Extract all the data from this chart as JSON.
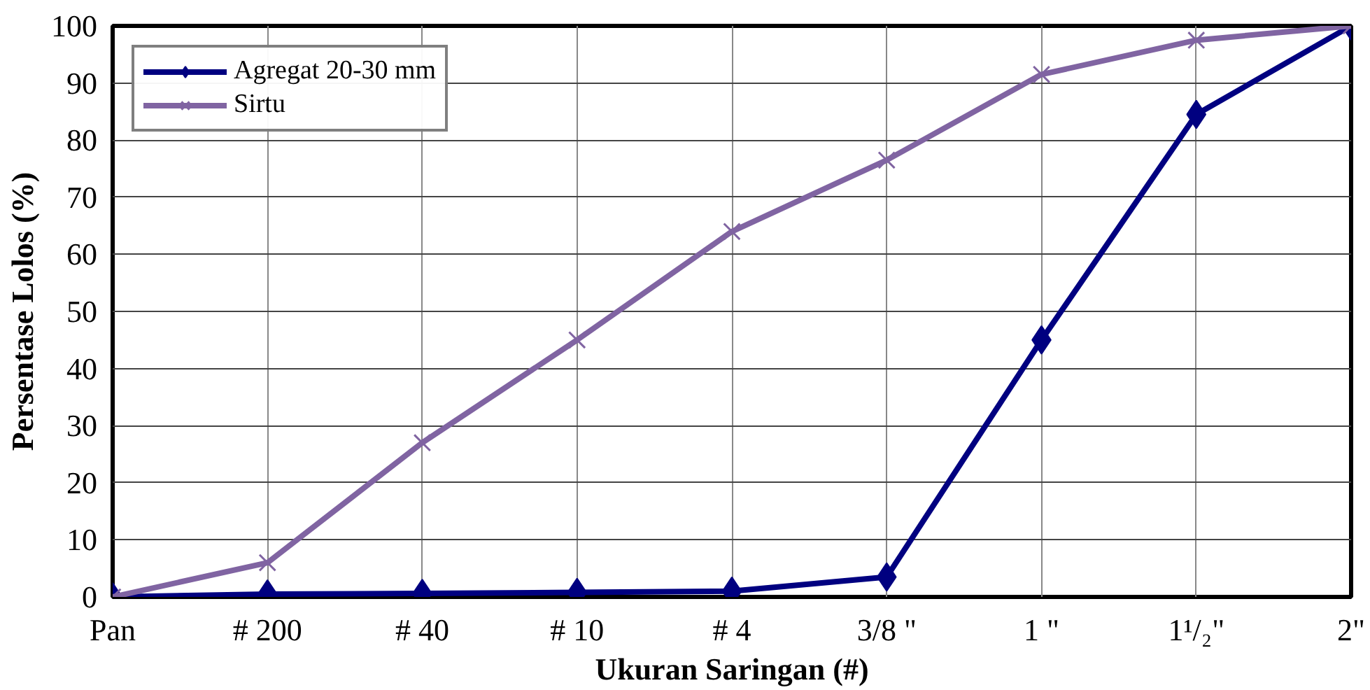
{
  "chart_data": {
    "type": "line",
    "xlabel": "Ukuran Saringan (#)",
    "ylabel": "Persentase Lolos (%)",
    "categories": [
      "Pan",
      "# 200",
      "# 40",
      "# 10",
      "# 4",
      "3/8 \"",
      "1 \"",
      "1¹/₂\"",
      "2\""
    ],
    "series": [
      {
        "name": "Agregat 20-30 mm",
        "color": "#000080",
        "marker": "diamond",
        "values": [
          0,
          0.5,
          0.6,
          0.8,
          1.0,
          3.5,
          45,
          84.5,
          100
        ]
      },
      {
        "name": "Sirtu",
        "color": "#8064a2",
        "marker": "cross",
        "values": [
          0,
          6,
          27,
          45,
          64,
          76.5,
          91.5,
          97.5,
          100
        ]
      }
    ],
    "ylim": [
      0,
      100
    ],
    "yticks": [
      0,
      10,
      20,
      30,
      40,
      50,
      60,
      70,
      80,
      90,
      100
    ],
    "grid": true,
    "legend": "top left",
    "line_style": "solid"
  }
}
